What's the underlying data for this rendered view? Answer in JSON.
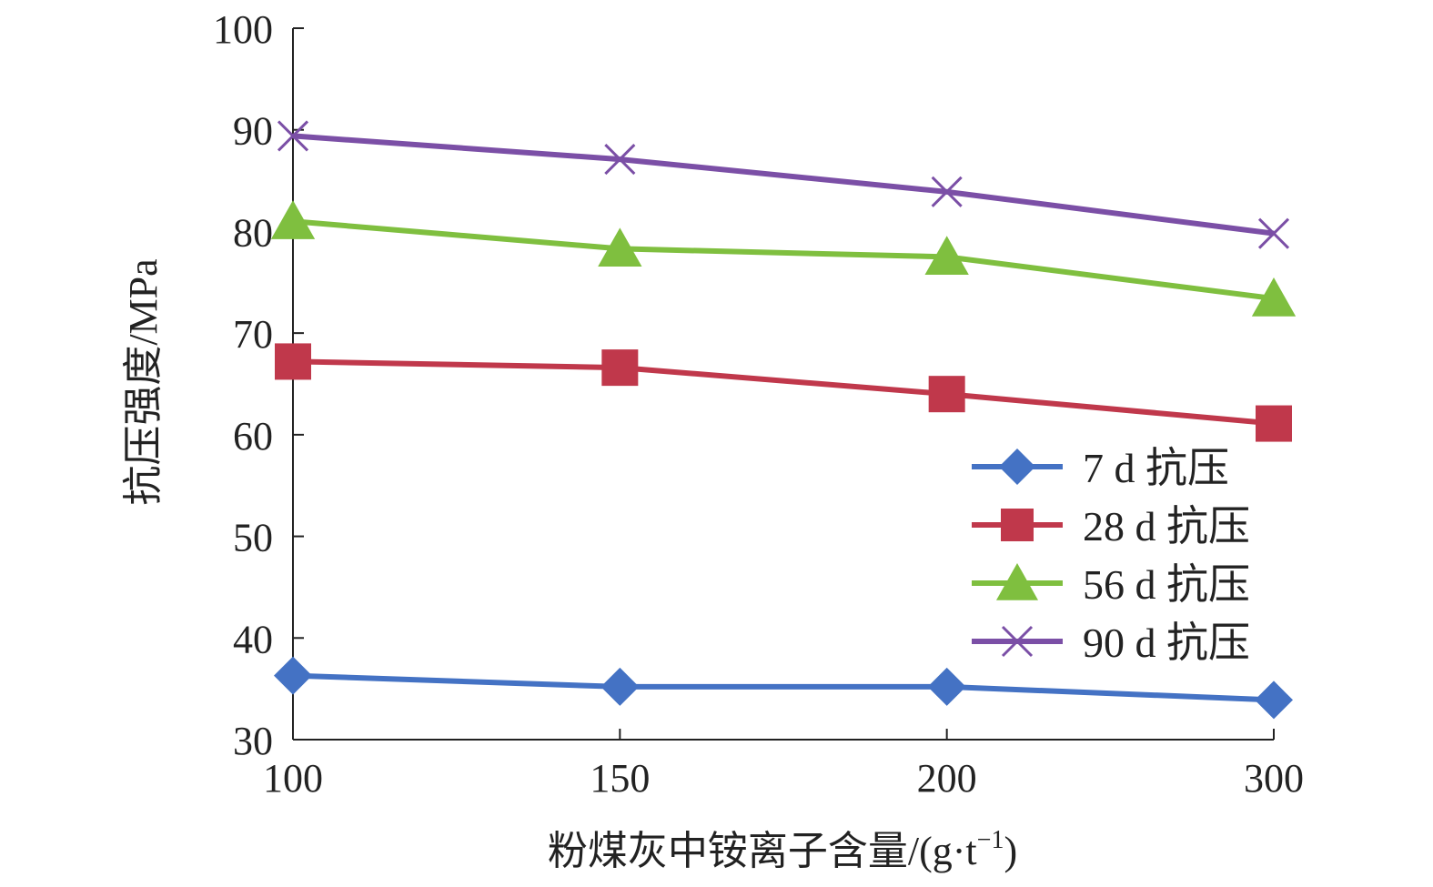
{
  "chart_data": {
    "type": "line",
    "x": [
      100,
      150,
      200,
      300
    ],
    "x_tick_labels": [
      "100",
      "150",
      "200",
      "300"
    ],
    "y_tick_labels": [
      "30",
      "40",
      "50",
      "60",
      "70",
      "80",
      "90",
      "100"
    ],
    "ylim": [
      30,
      100
    ],
    "ylabel": "抗压强度/MPa",
    "xlabel_text": "粉煤灰中铵离子含量/(g·t",
    "xlabel_sup": "−1",
    "xlabel_close": ")",
    "grid": false,
    "legend_placement": "right",
    "series": [
      {
        "name": "7 d 抗压",
        "values": [
          36.3,
          35.2,
          35.2,
          33.9
        ],
        "color": "#4472c4",
        "marker": "diamond"
      },
      {
        "name": "28 d 抗压",
        "values": [
          67.2,
          66.6,
          64.0,
          61.1
        ],
        "color": "#c0384b",
        "marker": "square"
      },
      {
        "name": "56 d 抗压",
        "values": [
          81.0,
          78.3,
          77.5,
          73.4
        ],
        "color": "#7fbf3f",
        "marker": "triangle"
      },
      {
        "name": "90 d 抗压",
        "values": [
          89.4,
          87.1,
          83.9,
          79.8
        ],
        "color": "#7b4fa6",
        "marker": "x"
      }
    ]
  }
}
